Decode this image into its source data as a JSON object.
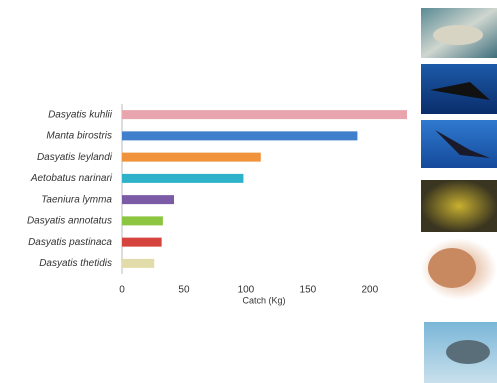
{
  "chart_data": {
    "type": "bar",
    "orientation": "horizontal",
    "x_label": "Catch (Kg)",
    "categories": [
      "Dasyatis kuhlii",
      "Manta birostris",
      "Dasyatis leylandi",
      "Aetobatus narinari",
      "Taeniura lymma",
      "Dasyatis annotatus",
      "Dasyatis pastinaca",
      "Dasyatis thetidis"
    ],
    "values": [
      230,
      190,
      112,
      98,
      42,
      33,
      32,
      26
    ],
    "colors": [
      "#e8a5ae",
      "#3f7fcb",
      "#f0933c",
      "#2eb2c9",
      "#7b5ba6",
      "#8cc540",
      "#d6453d",
      "#e2dbaa"
    ],
    "xlim": [
      0,
      230
    ],
    "xticks": [
      0,
      50,
      100,
      150,
      200
    ],
    "grid": false
  }
}
